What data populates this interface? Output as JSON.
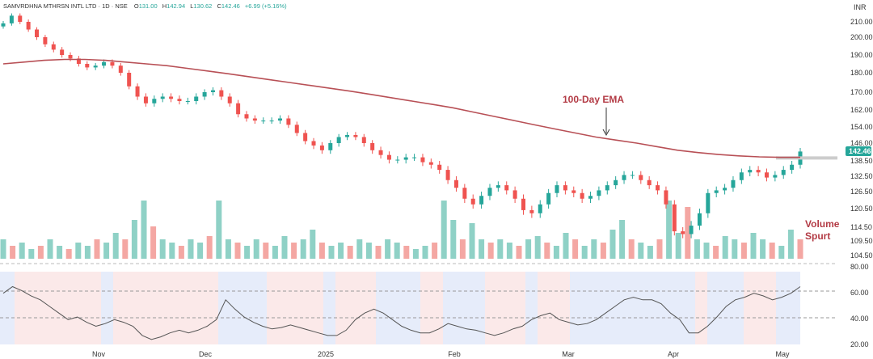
{
  "header": {
    "symbol_line": "SAMVRDHNA MTHRSN INTL LTD · 1D · NSE",
    "o_label": "O",
    "o_value": "131.00",
    "h_label": "H",
    "h_value": "142.94",
    "l_label": "L",
    "l_value": "130.62",
    "c_label": "C",
    "c_value": "142.46",
    "change": "+6.99 (+5.16%)"
  },
  "currency": "INR",
  "last_price_label": "142.46",
  "annotations": {
    "ema_label": "100-Day EMA",
    "volume_line1": "Volume",
    "volume_line2": "Spurt"
  },
  "colors": {
    "up": "#26a69a",
    "down": "#ef5350",
    "volume_up": "#8fd1c6",
    "volume_down": "#f4a7a3",
    "ema": "#b85056",
    "annotation": "#b33b45",
    "rsi_line": "#555555"
  },
  "chart_data": [
    {
      "type": "candlestick",
      "title": "SAMVRDHNA MTHRSN INTL LTD",
      "y_ticks": [
        "210.00",
        "200.00",
        "190.00",
        "180.00",
        "170.00",
        "162.00",
        "154.00",
        "146.00",
        "138.50",
        "132.50",
        "126.50",
        "120.50",
        "114.50",
        "109.50",
        "104.50"
      ],
      "x_ticks": [
        "Nov",
        "Dec",
        "2025",
        "Feb",
        "Mar",
        "Apr",
        "May"
      ],
      "close_path": [
        209,
        214,
        210,
        205,
        200,
        196,
        193,
        190,
        188,
        185,
        183,
        184,
        186,
        184,
        180,
        173,
        168,
        165,
        167,
        168,
        167,
        166,
        166,
        168,
        170,
        171,
        168,
        165,
        160,
        158,
        157,
        157,
        157,
        158,
        155,
        151,
        147,
        145,
        143,
        146,
        149,
        150,
        149,
        146,
        143,
        141,
        139,
        139,
        140,
        140,
        138,
        137,
        135,
        131,
        128,
        124,
        122,
        125,
        128,
        129,
        127,
        124,
        120,
        119,
        122,
        126,
        129,
        127,
        126,
        124,
        125,
        127,
        129,
        131,
        133,
        133,
        131,
        129,
        127,
        122,
        113,
        112,
        115,
        119,
        126,
        127,
        128,
        131,
        134,
        135,
        134,
        132,
        133,
        135,
        137,
        142.46
      ],
      "ema_path": [
        185,
        186,
        187,
        187.5,
        187.5,
        187,
        186,
        185,
        184,
        182.5,
        181,
        179.5,
        178,
        176.5,
        175,
        173.5,
        172,
        170.5,
        169,
        167.5,
        166,
        164.5,
        163,
        161,
        159,
        157,
        155,
        153,
        151,
        149,
        147.5,
        146,
        144.5,
        143,
        142,
        141.2,
        140.6,
        140.2,
        140,
        140
      ],
      "volume_path": [
        0.3,
        0.2,
        0.25,
        0.15,
        0.2,
        0.3,
        0.2,
        0.15,
        0.25,
        0.2,
        0.3,
        0.25,
        0.4,
        0.3,
        0.6,
        0.9,
        0.5,
        0.3,
        0.25,
        0.2,
        0.3,
        0.25,
        0.35,
        0.9,
        0.3,
        0.25,
        0.2,
        0.3,
        0.25,
        0.2,
        0.35,
        0.25,
        0.3,
        0.45,
        0.25,
        0.2,
        0.25,
        0.2,
        0.3,
        0.25,
        0.2,
        0.3,
        0.25,
        0.2,
        0.15,
        0.2,
        0.25,
        0.9,
        0.6,
        0.3,
        0.55,
        0.3,
        0.25,
        0.3,
        0.25,
        0.2,
        0.3,
        0.35,
        0.25,
        0.2,
        0.4,
        0.3,
        0.2,
        0.3,
        0.25,
        0.45,
        0.6,
        0.3,
        0.25,
        0.2,
        0.3,
        0.9,
        0.4,
        0.8,
        0.3,
        0.25,
        0.2,
        0.35,
        0.3,
        0.25,
        0.4,
        0.3,
        0.25,
        0.2,
        0.45,
        0.3
      ]
    },
    {
      "type": "line",
      "y_ticks": [
        "80.00",
        "60.00",
        "40.00",
        "20.00"
      ],
      "ylim": [
        20,
        80
      ],
      "rsi_path": [
        60,
        65,
        62,
        58,
        55,
        50,
        45,
        40,
        42,
        38,
        35,
        37,
        40,
        38,
        35,
        28,
        25,
        27,
        30,
        32,
        30,
        32,
        35,
        40,
        55,
        48,
        42,
        38,
        35,
        33,
        34,
        36,
        34,
        32,
        30,
        28,
        28,
        32,
        40,
        45,
        48,
        45,
        40,
        35,
        32,
        30,
        30,
        33,
        37,
        35,
        33,
        32,
        30,
        28,
        30,
        33,
        35,
        40,
        43,
        45,
        40,
        38,
        36,
        37,
        40,
        45,
        50,
        55,
        57,
        55,
        55,
        52,
        45,
        40,
        30,
        30,
        35,
        42,
        50,
        55,
        57,
        60,
        58,
        55,
        57,
        60,
        65
      ]
    }
  ]
}
